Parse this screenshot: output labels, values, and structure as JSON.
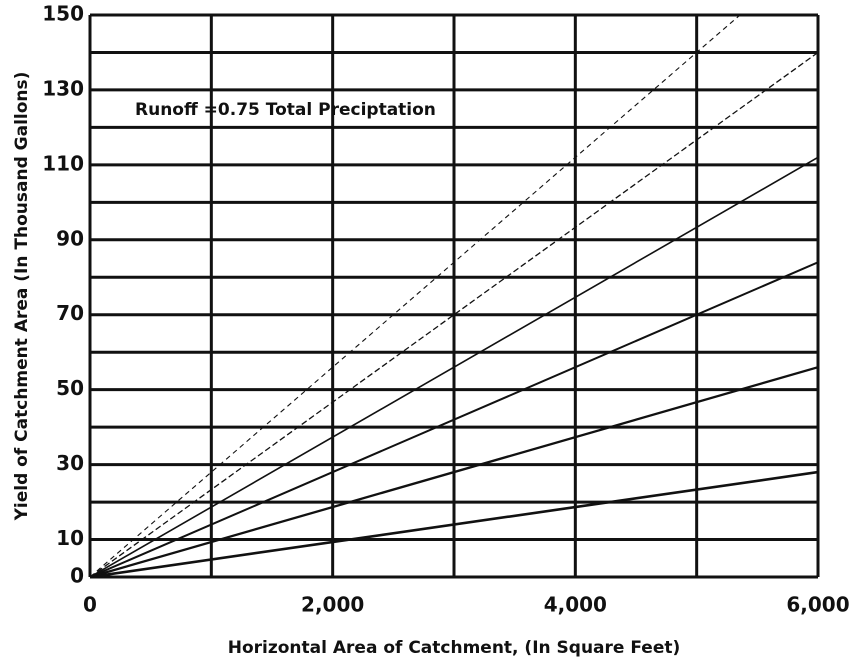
{
  "chart_data": {
    "type": "line",
    "annotation": "Runoff =0.75 Total Preciptation",
    "xlabel": "Horizontal Area of Catchment, (In Square Feet)",
    "ylabel": "Yield of Catchment Area (In Thousand Gallons)",
    "x": [
      0,
      6000
    ],
    "series": [
      {
        "color": "#111111",
        "values": [
          0,
          28
        ]
      },
      {
        "color": "#111111",
        "values": [
          0,
          56
        ]
      },
      {
        "color": "#111111",
        "values": [
          0,
          84
        ]
      },
      {
        "color": "#111111",
        "values": [
          0,
          112
        ]
      },
      {
        "color": "#111111",
        "values": [
          0,
          140
        ]
      },
      {
        "color": "#111111",
        "values": [
          0,
          168
        ]
      }
    ],
    "xlim": [
      0,
      6000
    ],
    "xticks": [
      0,
      {
        "value": 2000,
        "label": "2,000"
      },
      {
        "value": 4000,
        "label": "4,000"
      },
      {
        "value": 6000,
        "label": "6,000"
      }
    ],
    "xgrid": [
      0,
      1000,
      2000,
      3000,
      4000,
      5000,
      6000
    ],
    "ylim": [
      0,
      150
    ],
    "yticks": [
      0,
      10,
      30,
      50,
      70,
      90,
      110,
      130,
      150
    ],
    "ygrid": [
      0,
      10,
      20,
      30,
      40,
      50,
      60,
      70,
      80,
      90,
      100,
      110,
      120,
      130,
      140,
      150
    ],
    "grid": true
  }
}
